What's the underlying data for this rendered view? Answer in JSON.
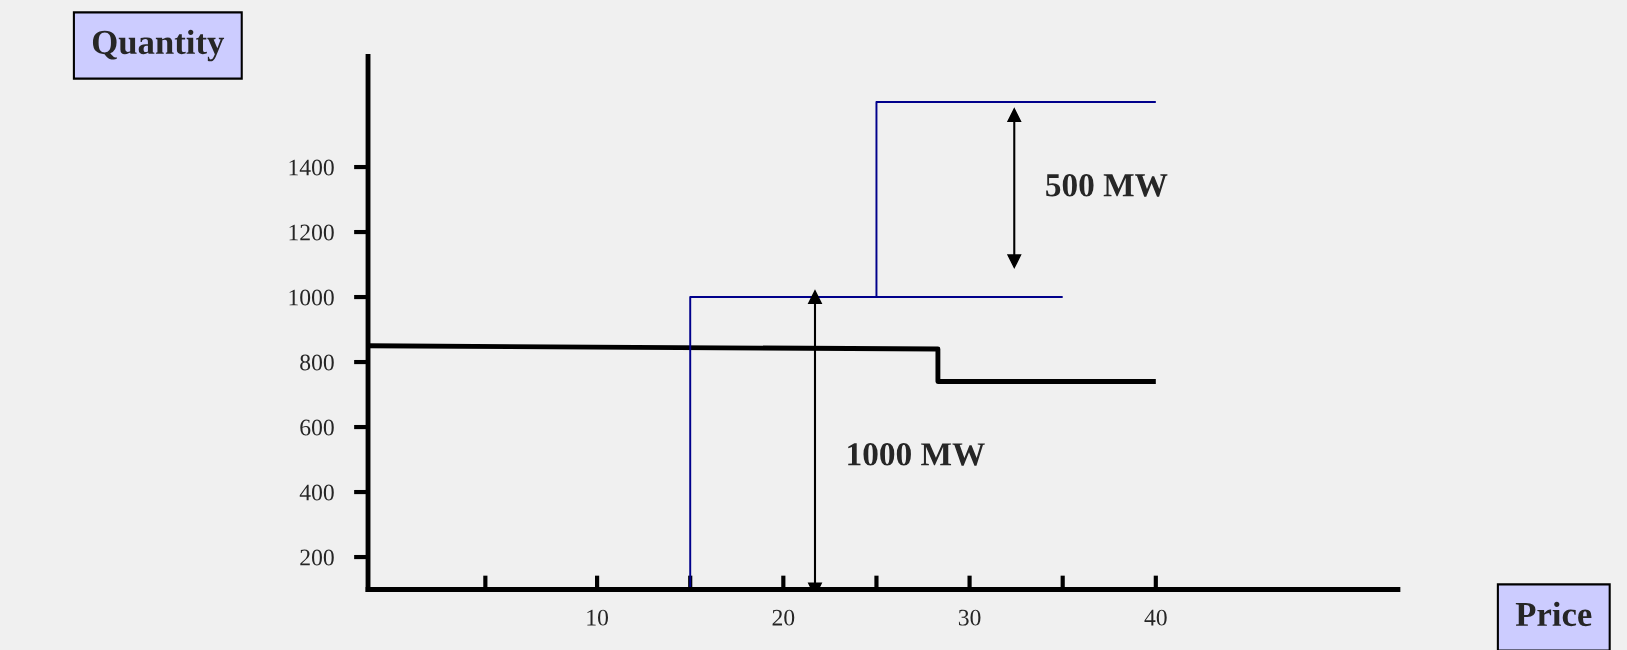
{
  "chart_data": {
    "type": "line",
    "xlabel": "Price",
    "ylabel": "Quantity",
    "xlim": [
      -2.3,
      53
    ],
    "ylim": [
      100,
      1740
    ],
    "xticks": [
      {
        "value": 4,
        "label": null
      },
      10,
      {
        "value": 15,
        "label": null
      },
      20,
      {
        "value": 25,
        "label": null
      },
      30,
      {
        "value": 35,
        "label": null
      },
      40
    ],
    "yticks": [
      200,
      400,
      600,
      800,
      1000,
      1200,
      1400
    ],
    "grid": false,
    "legend": false,
    "marker": "none",
    "series": [
      {
        "color": "#000000",
        "x": [
          -2.3,
          28.3,
          28.3,
          40
        ],
        "values": [
          850,
          840,
          740,
          740
        ],
        "line_style": "solid"
      },
      {
        "color": "#00008b",
        "x": [
          15,
          15,
          35
        ],
        "values": [
          100,
          1000,
          1000
        ],
        "line_style": "solid"
      },
      {
        "color": "#00008b",
        "x": [
          25,
          25,
          40
        ],
        "values": [
          1000,
          1600,
          1600
        ],
        "line_style": "solid"
      },
      {
        "marker": "triangle",
        "color": "#000000",
        "x": [
          21.7,
          21.7
        ],
        "values": [
          100,
          1000
        ]
      },
      {
        "marker": "triangle",
        "color": "#000000",
        "x": [
          32.4,
          32.4
        ],
        "values": [
          1560,
          1110
        ]
      }
    ],
    "annotations": [
      "1000 MW",
      "500 MW"
    ]
  }
}
